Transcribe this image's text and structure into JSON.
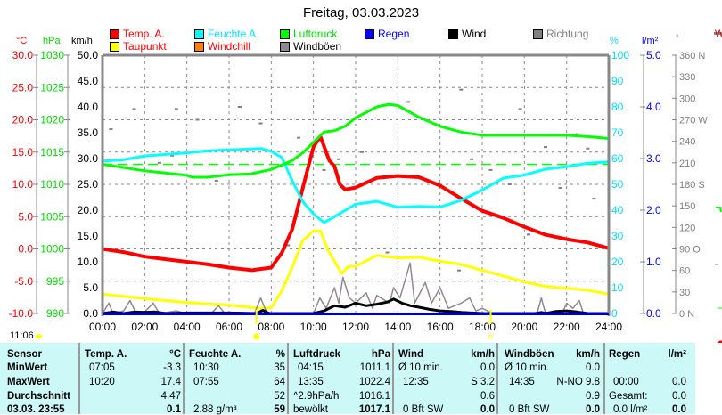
{
  "title": "Freitag, 03.03.2023",
  "legend": [
    {
      "label": "Temp. A.",
      "color": "#ff0000",
      "text_color": "#ff0000"
    },
    {
      "label": "Feuchte A.",
      "color": "#00ffff",
      "text_color": "#00e0ff"
    },
    {
      "label": "Luftdruck",
      "color": "#00ff00",
      "text_color": "#00dd00"
    },
    {
      "label": "Regen",
      "color": "#0000ff",
      "text_color": "#0000ff"
    },
    {
      "label": "Wind",
      "color": "#000000",
      "text_color": "#000000"
    },
    {
      "label": "Richtung",
      "color": "#808080",
      "text_color": "#808080"
    },
    {
      "label": "Taupunkt",
      "color": "#ffff00",
      "text_color": "#ff0000"
    },
    {
      "label": "Windchill",
      "color": "#ff8000",
      "text_color": "#ff0000"
    },
    {
      "label": "Windböen",
      "color": "#908890",
      "text_color": "#000000"
    }
  ],
  "axes_units": {
    "temp": "°C",
    "pressure": "hPa",
    "wind": "km/h",
    "humidity": "%",
    "rain": "l/m²",
    "direction": "°",
    "right_cut": "W"
  },
  "time_label": "11:06",
  "chart_data": {
    "type": "line",
    "x_ticks": [
      "00:00",
      "02:00",
      "04:00",
      "06:00",
      "08:00",
      "10:00",
      "12:00",
      "14:00",
      "16:00",
      "18:00",
      "20:00",
      "22:00",
      "24:00"
    ],
    "xlim_hours": [
      0,
      24
    ],
    "axes": {
      "temp": {
        "ylim": [
          -10,
          30
        ],
        "ticks": [
          "30.0",
          "25.0",
          "20.0",
          "15.0",
          "10.0",
          "5.0",
          "0.0",
          "-5.0",
          "-10.0"
        ]
      },
      "pressure": {
        "ylim": [
          990,
          1030
        ],
        "ticks": [
          "1030",
          "1025",
          "1020",
          "1015",
          "1010",
          "1005",
          "1000",
          "995",
          "990"
        ]
      },
      "wind": {
        "ylim": [
          0,
          50
        ],
        "ticks": [
          "50.0",
          "45.0",
          "40.0",
          "35.0",
          "30.0",
          "25.0",
          "20.0",
          "15.0",
          "10.0",
          "5.0",
          "0.0"
        ]
      },
      "humidity": {
        "ylim": [
          0,
          100
        ],
        "ticks": [
          "100",
          "90",
          "80",
          "70",
          "60",
          "50",
          "40",
          "30",
          "20",
          "10",
          "0"
        ]
      },
      "rain": {
        "ylim": [
          0,
          5
        ],
        "ticks": [
          "5.0",
          "4.0",
          "3.0",
          "2.0",
          "1.0",
          "0.0"
        ]
      },
      "direction": {
        "ylim": [
          0,
          360
        ],
        "ticks": [
          "360 N",
          "330",
          "300",
          "270 W",
          "240",
          "210",
          "180 S",
          "150",
          "120",
          "90  O",
          "60",
          "30",
          "0   N"
        ]
      }
    },
    "series": [
      {
        "name": "Temp. A.",
        "axis": "temp",
        "color": "#ff0000",
        "width": 4,
        "points": [
          [
            0,
            0.0
          ],
          [
            1,
            -0.5
          ],
          [
            2,
            -1.2
          ],
          [
            3,
            -1.6
          ],
          [
            4,
            -2.0
          ],
          [
            5,
            -2.4
          ],
          [
            6,
            -2.9
          ],
          [
            7.08,
            -3.3
          ],
          [
            8,
            -2.9
          ],
          [
            8.5,
            -0.6
          ],
          [
            9,
            3.1
          ],
          [
            9.5,
            9.5
          ],
          [
            10,
            15.8
          ],
          [
            10.33,
            17.4
          ],
          [
            10.75,
            13.7
          ],
          [
            11,
            12.8
          ],
          [
            11.25,
            10
          ],
          [
            11.5,
            9.2
          ],
          [
            12,
            9.5
          ],
          [
            13,
            11.0
          ],
          [
            14,
            11.3
          ],
          [
            15,
            11.1
          ],
          [
            16,
            9.8
          ],
          [
            17,
            7.8
          ],
          [
            18,
            5.9
          ],
          [
            19,
            4.8
          ],
          [
            20,
            3.4
          ],
          [
            21,
            2.2
          ],
          [
            22,
            1.5
          ],
          [
            23,
            1.0
          ],
          [
            24,
            0.1
          ]
        ]
      },
      {
        "name": "Taupunkt",
        "axis": "temp",
        "color": "#ffff00",
        "width": 3,
        "points": [
          [
            0,
            -7.0
          ],
          [
            2,
            -7.7
          ],
          [
            4,
            -8.3
          ],
          [
            6,
            -8.7
          ],
          [
            7.5,
            -9.2
          ],
          [
            8,
            -9.1
          ],
          [
            8.5,
            -6.5
          ],
          [
            9,
            -2.8
          ],
          [
            9.5,
            1.3
          ],
          [
            10,
            2.8
          ],
          [
            10.33,
            2.8
          ],
          [
            10.67,
            -0.1
          ],
          [
            11,
            -1.9
          ],
          [
            11.33,
            -3.8
          ],
          [
            11.67,
            -2.7
          ],
          [
            12,
            -2.7
          ],
          [
            13,
            -1.0
          ],
          [
            14,
            -1.4
          ],
          [
            15,
            -1.3
          ],
          [
            16,
            -1.9
          ],
          [
            17,
            -2.4
          ],
          [
            18,
            -3.3
          ],
          [
            19,
            -4.2
          ],
          [
            20,
            -5.1
          ],
          [
            21,
            -5.8
          ],
          [
            22,
            -6.1
          ],
          [
            23,
            -6.4
          ],
          [
            24,
            -7.0
          ]
        ]
      },
      {
        "name": "Feuchte A.",
        "axis": "humidity",
        "color": "#00ffff",
        "width": 3,
        "points": [
          [
            0,
            59
          ],
          [
            1,
            59.5
          ],
          [
            2,
            61
          ],
          [
            4,
            62.2
          ],
          [
            5,
            63
          ],
          [
            7.5,
            63.9
          ],
          [
            8,
            62.8
          ],
          [
            8.5,
            60.4
          ],
          [
            9,
            51.3
          ],
          [
            9.5,
            43.2
          ],
          [
            10,
            38.6
          ],
          [
            10.5,
            35.2
          ],
          [
            11,
            37.5
          ],
          [
            12,
            42.3
          ],
          [
            13,
            43.4
          ],
          [
            14,
            41.1
          ],
          [
            15,
            41.5
          ],
          [
            16,
            41.2
          ],
          [
            17,
            43.8
          ],
          [
            18,
            47.8
          ],
          [
            19,
            52.4
          ],
          [
            20,
            53.6
          ],
          [
            21,
            55.9
          ],
          [
            22,
            56.8
          ],
          [
            23,
            58.2
          ],
          [
            24,
            58.7
          ]
        ]
      },
      {
        "name": "Luftdruck",
        "axis": "pressure",
        "color": "#00ff00",
        "width": 3,
        "points": [
          [
            0,
            1013.1
          ],
          [
            2,
            1012.1
          ],
          [
            4,
            1011.4
          ],
          [
            4.25,
            1011.1
          ],
          [
            5,
            1011.1
          ],
          [
            6,
            1011.5
          ],
          [
            7,
            1011.6
          ],
          [
            8,
            1012.3
          ],
          [
            9,
            1013.7
          ],
          [
            9.5,
            1014.9
          ],
          [
            10,
            1016.5
          ],
          [
            10.5,
            1018.1
          ],
          [
            11,
            1018.3
          ],
          [
            11.5,
            1019.0
          ],
          [
            12,
            1020.3
          ],
          [
            13,
            1022.0
          ],
          [
            13.58,
            1022.4
          ],
          [
            14,
            1022.2
          ],
          [
            15,
            1020.4
          ],
          [
            16,
            1019.0
          ],
          [
            17,
            1018.1
          ],
          [
            18,
            1017.6
          ],
          [
            20,
            1017.6
          ],
          [
            22,
            1017.6
          ],
          [
            23,
            1017.4
          ],
          [
            24,
            1017.1
          ]
        ]
      },
      {
        "name": "Windböen",
        "axis": "wind",
        "color": "#908890",
        "width": 1.5,
        "points": [
          [
            0,
            0
          ],
          [
            0.3,
            2
          ],
          [
            0.5,
            0
          ],
          [
            1,
            0.5
          ],
          [
            1.3,
            2.5
          ],
          [
            1.6,
            0
          ],
          [
            2,
            0.3
          ],
          [
            2.4,
            2
          ],
          [
            2.7,
            0
          ],
          [
            3.5,
            0.5
          ],
          [
            4,
            0
          ],
          [
            5.2,
            0.2
          ],
          [
            5.5,
            1.5
          ],
          [
            5.8,
            0
          ],
          [
            7.2,
            0
          ],
          [
            7.5,
            3
          ],
          [
            7.8,
            0
          ],
          [
            8,
            0
          ],
          [
            10,
            0
          ],
          [
            10.3,
            3
          ],
          [
            10.6,
            1
          ],
          [
            11,
            5
          ],
          [
            11.2,
            2
          ],
          [
            11.4,
            7
          ],
          [
            11.7,
            3
          ],
          [
            12,
            2
          ],
          [
            12.5,
            4
          ],
          [
            12.8,
            1
          ],
          [
            13,
            3.5
          ],
          [
            13.6,
            2
          ],
          [
            13.8,
            5
          ],
          [
            14.1,
            3
          ],
          [
            14.58,
            9.8
          ],
          [
            14.8,
            2
          ],
          [
            15.3,
            6
          ],
          [
            15.6,
            2
          ],
          [
            16,
            5
          ],
          [
            16.4,
            1
          ],
          [
            17,
            2
          ],
          [
            17.4,
            3
          ],
          [
            17.7,
            0.5
          ],
          [
            18,
            1
          ],
          [
            18.5,
            0
          ],
          [
            20.6,
            0
          ],
          [
            20.8,
            3
          ],
          [
            21,
            0
          ],
          [
            21.8,
            0
          ],
          [
            22,
            2
          ],
          [
            22.3,
            1
          ],
          [
            22.6,
            2.5
          ],
          [
            22.8,
            0
          ],
          [
            24,
            0
          ]
        ]
      },
      {
        "name": "Wind",
        "axis": "wind",
        "color": "#000000",
        "width": 3,
        "points": [
          [
            0,
            0
          ],
          [
            0.5,
            0.3
          ],
          [
            1,
            0
          ],
          [
            1.5,
            0.3
          ],
          [
            2,
            0.2
          ],
          [
            2.5,
            0.3
          ],
          [
            3,
            0
          ],
          [
            4,
            0.1
          ],
          [
            6,
            0.1
          ],
          [
            7.3,
            0
          ],
          [
            7.6,
            0.6
          ],
          [
            7.9,
            0
          ],
          [
            10,
            0
          ],
          [
            10.5,
            0.5
          ],
          [
            11,
            1.5
          ],
          [
            11.5,
            1.2
          ],
          [
            12,
            2.0
          ],
          [
            12.5,
            1.5
          ],
          [
            13,
            1.8
          ],
          [
            13.5,
            2.2
          ],
          [
            13.8,
            2.8
          ],
          [
            14.2,
            2.0
          ],
          [
            14.6,
            1.5
          ],
          [
            15,
            1.2
          ],
          [
            15.5,
            0.8
          ],
          [
            16,
            0.5
          ],
          [
            16.5,
            0.4
          ],
          [
            17,
            0.2
          ],
          [
            18,
            0
          ],
          [
            20.5,
            0
          ],
          [
            20.8,
            0.2
          ],
          [
            21,
            0
          ],
          [
            21.5,
            0.4
          ],
          [
            22,
            0.5
          ],
          [
            22.5,
            0.3
          ],
          [
            23,
            0
          ],
          [
            24,
            0
          ]
        ]
      },
      {
        "name": "Regen",
        "axis": "rain",
        "color": "#0000ff",
        "width": 2,
        "points": [
          [
            0,
            0
          ],
          [
            24,
            0
          ]
        ]
      }
    ],
    "reference_lines": [
      {
        "axis": "pressure",
        "value": 1013.1,
        "color": "#00ff00",
        "style": "dashed"
      }
    ],
    "direction_points": [
      [
        1.5,
        285
      ],
      [
        3.5,
        285
      ],
      [
        4.5,
        270
      ],
      [
        6.5,
        288
      ],
      [
        0.4,
        257
      ],
      [
        2.7,
        210
      ],
      [
        5.4,
        185
      ],
      [
        3.3,
        220
      ],
      [
        7.5,
        265
      ],
      [
        11.2,
        215
      ],
      [
        13.2,
        190
      ],
      [
        15.2,
        272
      ],
      [
        17.5,
        215
      ],
      [
        18.4,
        200
      ],
      [
        19.3,
        180
      ],
      [
        21,
        232
      ],
      [
        22.5,
        250
      ],
      [
        23,
        230
      ],
      [
        20.2,
        110
      ],
      [
        13.5,
        85
      ],
      [
        16.9,
        60
      ],
      [
        9.3,
        245
      ],
      [
        10.5,
        200
      ],
      [
        12.3,
        225
      ],
      [
        14.5,
        295
      ],
      [
        17,
        312
      ],
      [
        19.8,
        285
      ],
      [
        21.7,
        175
      ],
      [
        23.3,
        160
      ],
      [
        8.8,
        95
      ]
    ],
    "sunrise_hours": 7.3,
    "sunset_hours": 18.4
  },
  "table": {
    "headers": [
      [
        "Sensor",
        ""
      ],
      [
        "Temp. A.",
        "°C"
      ],
      [
        "Feuchte A.",
        "%"
      ],
      [
        "Luftdruck",
        "hPa"
      ],
      [
        "Wind",
        "km/h"
      ],
      [
        "Windböen",
        "km/h"
      ],
      [
        "Regen",
        "l/m²"
      ]
    ],
    "rows": [
      {
        "label": "MinWert",
        "cells": [
          [
            "07:05",
            "-3.3"
          ],
          [
            "10:30",
            "35"
          ],
          [
            "04:15",
            "1011.1"
          ],
          [
            "Ø 10 min.",
            "0.0"
          ],
          [
            "Ø 10 min.",
            "0.0"
          ],
          [
            "",
            ""
          ]
        ]
      },
      {
        "label": "MaxWert",
        "cells": [
          [
            "10:20",
            "17.4"
          ],
          [
            "07:55",
            "64"
          ],
          [
            "13:35",
            "1022.4"
          ],
          [
            "12:35",
            "S 3.2"
          ],
          [
            "14:35",
            "N-NO 9.8"
          ],
          [
            "00:00",
            "0.0"
          ]
        ]
      },
      {
        "label": "Durchschnitt",
        "cells": [
          [
            "",
            "4.47"
          ],
          [
            "",
            "52"
          ],
          [
            "^2.9hPa/h",
            "1016.1"
          ],
          [
            "",
            "0.6"
          ],
          [
            "",
            "0.9"
          ],
          [
            "Gesamt:",
            "0.0"
          ]
        ]
      },
      {
        "label": "03.03. 23:55",
        "cells": [
          [
            "",
            "0.1"
          ],
          [
            "2.88 g/m³",
            "59"
          ],
          [
            "bewölkt",
            "1017.1"
          ],
          [
            "0 Bft SW",
            "0.0"
          ],
          [
            "0 Bft SW",
            "0.0"
          ],
          [
            "0.0 l/m²",
            "0.0"
          ]
        ]
      }
    ]
  }
}
